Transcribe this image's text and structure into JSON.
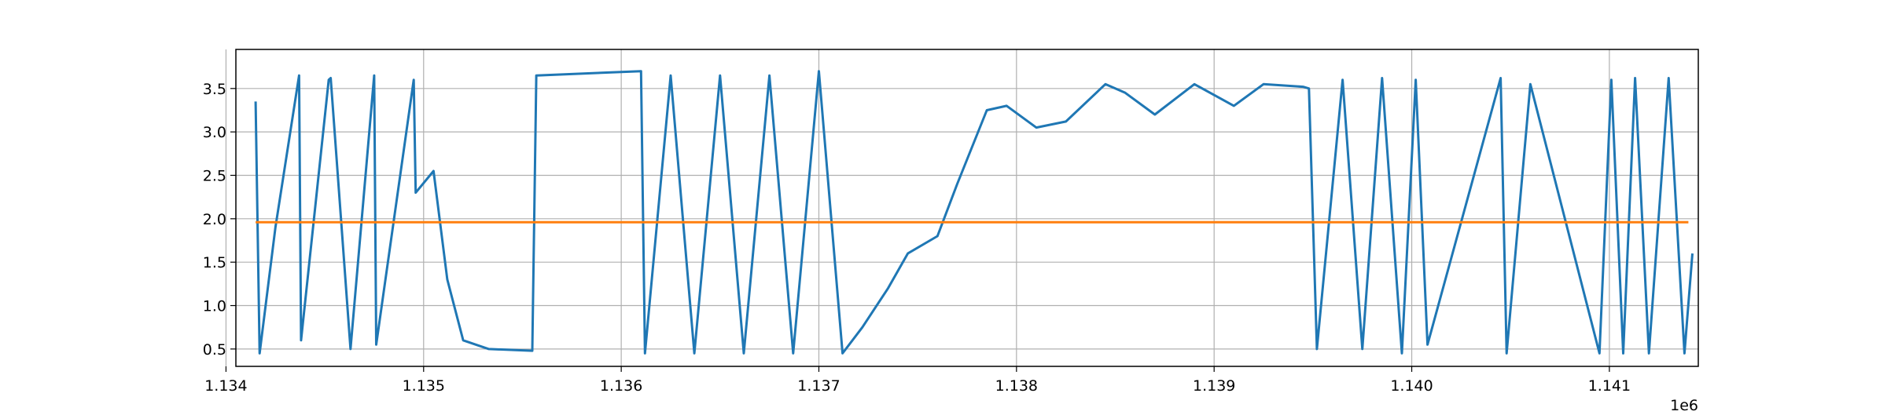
{
  "chart_data": {
    "type": "line",
    "title": "",
    "xlabel": "",
    "ylabel": "",
    "x_offset_label": "1e6",
    "xlim": [
      1.13405,
      1.14145
    ],
    "ylim": [
      0.3,
      3.95
    ],
    "x_ticks": [
      1.134,
      1.135,
      1.136,
      1.137,
      1.138,
      1.139,
      1.14,
      1.141
    ],
    "x_tick_labels": [
      "1.134",
      "1.135",
      "1.136",
      "1.137",
      "1.138",
      "1.139",
      "1.140",
      "1.141"
    ],
    "y_ticks": [
      0.5,
      1.0,
      1.5,
      2.0,
      2.5,
      3.0,
      3.5
    ],
    "y_tick_labels": [
      "0.5",
      "1.0",
      "1.5",
      "2.0",
      "2.5",
      "3.0",
      "3.5"
    ],
    "grid": true,
    "legend": "none",
    "series": [
      {
        "color": "#1f77b4",
        "x": [
          1.13415,
          1.13417,
          1.13425,
          1.13437,
          1.13438,
          1.13452,
          1.13453,
          1.13463,
          1.13475,
          1.13476,
          1.13495,
          1.13496,
          1.13505,
          1.13512,
          1.1352,
          1.13533,
          1.13555,
          1.13557,
          1.1361,
          1.13612,
          1.13625,
          1.13637,
          1.1365,
          1.13662,
          1.13675,
          1.13687,
          1.137,
          1.13712,
          1.13722,
          1.13735,
          1.13745,
          1.1376,
          1.1377,
          1.13785,
          1.13795,
          1.1381,
          1.13825,
          1.13845,
          1.13855,
          1.1387,
          1.1389,
          1.1391,
          1.13925,
          1.13945,
          1.13948,
          1.13952,
          1.13965,
          1.13975,
          1.13985,
          1.13995,
          1.14002,
          1.14008,
          1.14045,
          1.14048,
          1.1406,
          1.14095,
          1.14101,
          1.14107,
          1.14113,
          1.1412,
          1.1413,
          1.14138,
          1.14142
        ],
        "y": [
          3.35,
          0.45,
          1.9,
          3.65,
          0.6,
          3.6,
          3.62,
          0.5,
          3.65,
          0.55,
          3.6,
          2.3,
          2.55,
          1.3,
          0.6,
          0.5,
          0.48,
          3.65,
          3.7,
          0.45,
          3.65,
          0.45,
          3.65,
          0.45,
          3.65,
          0.45,
          3.7,
          0.45,
          0.75,
          1.2,
          1.6,
          1.8,
          2.4,
          3.25,
          3.3,
          3.05,
          3.12,
          3.55,
          3.45,
          3.2,
          3.55,
          3.3,
          3.55,
          3.52,
          3.5,
          0.5,
          3.6,
          0.5,
          3.62,
          0.45,
          3.6,
          0.55,
          3.62,
          0.45,
          3.55,
          0.45,
          3.6,
          0.45,
          3.62,
          0.45,
          3.62,
          0.45,
          1.6
        ]
      },
      {
        "color": "#ff7f0e",
        "x": [
          1.13415,
          1.1414
        ],
        "y": [
          1.96,
          1.96
        ]
      }
    ]
  }
}
